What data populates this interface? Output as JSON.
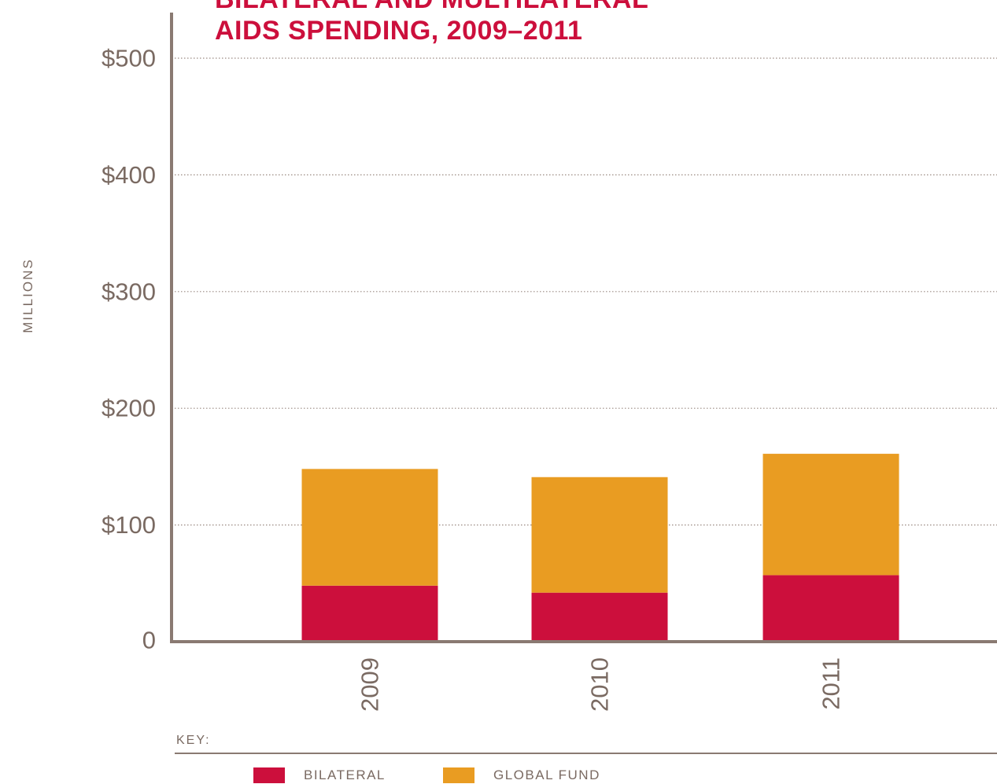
{
  "colors": {
    "title": "#cc0f3c",
    "bilateral": "#cc0f3c",
    "global_fund": "#e99c22",
    "axis": "#8a7a72",
    "text": "#7a6a62",
    "grid": "#9a8a82"
  },
  "chart_data": {
    "type": "bar",
    "stacked": true,
    "title_lines": [
      "BILATERAL AND MULTILATERAL",
      "AIDS SPENDING, 2009–2011"
    ],
    "ylabel": "MILLIONS",
    "xlabel": "",
    "ylim": [
      0,
      500
    ],
    "y_ticks": [
      {
        "value": 0,
        "label": "0"
      },
      {
        "value": 100,
        "label": "$100"
      },
      {
        "value": 200,
        "label": "$200"
      },
      {
        "value": 300,
        "label": "$300"
      },
      {
        "value": 400,
        "label": "$400"
      },
      {
        "value": 500,
        "label": "$500"
      }
    ],
    "categories": [
      "2009",
      "2010",
      "2011"
    ],
    "series": [
      {
        "name": "BILATERAL",
        "values": [
          48,
          42,
          57
        ]
      },
      {
        "name": "GLOBAL FUND",
        "values": [
          100,
          99,
          104
        ]
      }
    ],
    "grid": true,
    "legend_position": "bottom",
    "legend_title": "KEY:"
  }
}
